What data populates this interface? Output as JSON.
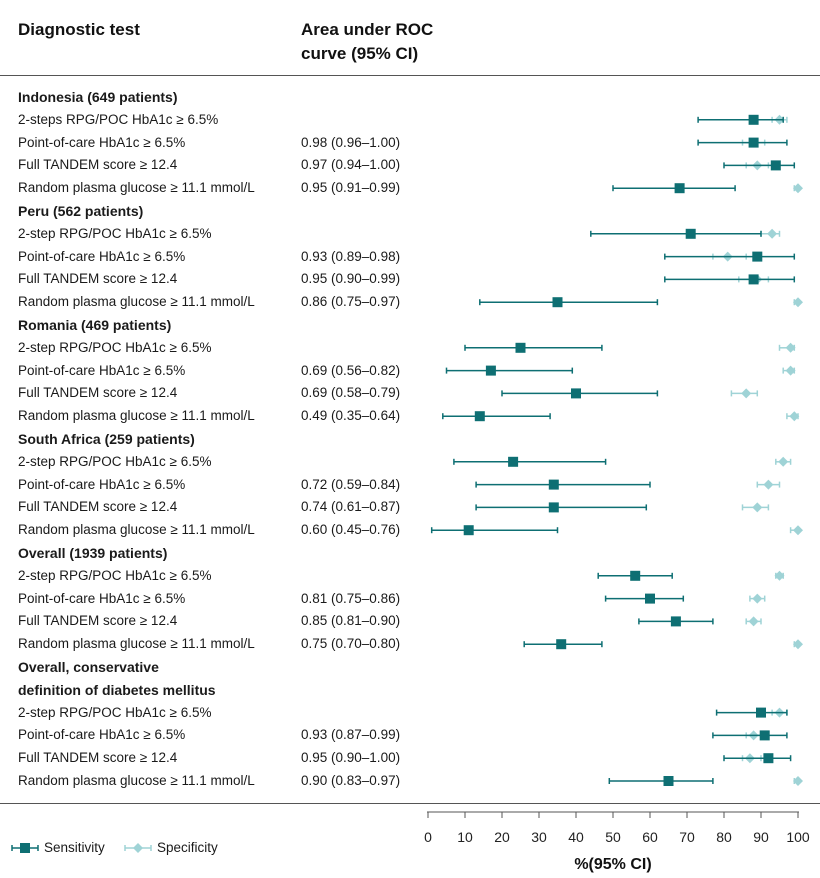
{
  "header": {
    "col1": "Diagnostic test",
    "col2_line1": "Area under ROC",
    "col2_line2": "curve (95% CI)"
  },
  "legend": {
    "sensitivity": "Sensitivity",
    "specificity": "Specificity"
  },
  "colors": {
    "sensitivity": "#0e6f73",
    "specificity": "#9fd3d6"
  },
  "chart_data": {
    "type": "forest",
    "xlabel": "%(95% CI)",
    "xlim": [
      0,
      100
    ],
    "xticks": [
      0,
      10,
      20,
      30,
      40,
      50,
      60,
      70,
      80,
      90,
      100
    ],
    "series": [
      {
        "name": "Sensitivity"
      },
      {
        "name": "Specificity"
      }
    ],
    "rows": [
      {
        "label": "Indonesia (649 patients)",
        "group": true
      },
      {
        "label": "2-steps RPG/POC HbA1c ≥ 6.5%",
        "auc": "",
        "sens": [
          88,
          73,
          96
        ],
        "spec": [
          95,
          93,
          97
        ]
      },
      {
        "label": "Point-of-care HbA1c ≥ 6.5%",
        "auc": "0.98 (0.96–1.00)",
        "sens": [
          88,
          73,
          97
        ],
        "spec": [
          88,
          85,
          91
        ]
      },
      {
        "label": "Full TANDEM score ≥ 12.4",
        "auc": "0.97 (0.94–1.00)",
        "sens": [
          94,
          80,
          99
        ],
        "spec": [
          89,
          86,
          92
        ]
      },
      {
        "label": "Random plasma glucose ≥ 11.1 mmol/L",
        "auc": "0.95 (0.91–0.99)",
        "sens": [
          68,
          50,
          83
        ],
        "spec": [
          100,
          99,
          100
        ]
      },
      {
        "label": "Peru (562 patients)",
        "group": true
      },
      {
        "label": "2-step RPG/POC HbA1c ≥  6.5%",
        "auc": "",
        "sens": [
          71,
          44,
          90
        ],
        "spec": [
          93,
          90,
          95
        ]
      },
      {
        "label": "Point-of-care HbA1c ≥  6.5%",
        "auc": "0.93 (0.89–0.98)",
        "sens": [
          89,
          64,
          99
        ],
        "spec": [
          81,
          77,
          86
        ]
      },
      {
        "label": "Full TANDEM score ≥ 12.4",
        "auc": "0.95 (0.90–0.99)",
        "sens": [
          88,
          64,
          99
        ],
        "spec": [
          89,
          84,
          92
        ]
      },
      {
        "label": "Random plasma glucose  ≥ 11.1  mmol/L",
        "auc": "0.86 (0.75–0.97)",
        "sens": [
          35,
          14,
          62
        ],
        "spec": [
          100,
          99,
          100
        ]
      },
      {
        "label": "Romania (469 patients)",
        "group": true
      },
      {
        "label": "2-step RPG/POC HbA1c ≥ 6.5%",
        "auc": "",
        "sens": [
          25,
          10,
          47
        ],
        "spec": [
          98,
          95,
          99
        ]
      },
      {
        "label": "Point-of-care HbA1c  ≥ 6.5%",
        "auc": "0.69 (0.56–0.82)",
        "sens": [
          17,
          5,
          39
        ],
        "spec": [
          98,
          96,
          99
        ]
      },
      {
        "label": "Full TANDEM score ≥ 12.4",
        "auc": "0.69 (0.58–0.79)",
        "sens": [
          40,
          20,
          62
        ],
        "spec": [
          86,
          82,
          89
        ]
      },
      {
        "label": "Random plasma glucose ≥ 11.1 mmol/L",
        "auc": "0.49 (0.35–0.64)",
        "sens": [
          14,
          4,
          33
        ],
        "spec": [
          99,
          97,
          100
        ]
      },
      {
        "label": "South Africa (259 patients)",
        "group": true
      },
      {
        "label": "2-step RPG/POC HbA1c ≥ 6.5%",
        "auc": "",
        "sens": [
          23,
          7,
          48
        ],
        "spec": [
          96,
          94,
          98
        ]
      },
      {
        "label": "Point-of-care HbA1c ≥ 6.5%",
        "auc": "0.72 (0.59–0.84)",
        "sens": [
          34,
          13,
          60
        ],
        "spec": [
          92,
          89,
          95
        ]
      },
      {
        "label": "Full TANDEM score ≥ 12.4",
        "auc": "0.74 (0.61–0.87)",
        "sens": [
          34,
          13,
          59
        ],
        "spec": [
          89,
          85,
          92
        ]
      },
      {
        "label": "Random plasma glucose ≥ 11.1 mmol/L",
        "auc": "0.60 (0.45–0.76)",
        "sens": [
          11,
          1,
          35
        ],
        "spec": [
          100,
          98,
          100
        ]
      },
      {
        "label": "Overall (1939 patients)",
        "group": true
      },
      {
        "label": "2-step RPG/POC HbA1c ≥ 6.5%",
        "auc": "",
        "sens": [
          56,
          46,
          66
        ],
        "spec": [
          95,
          94,
          96
        ]
      },
      {
        "label": "Point-of-care HbA1c ≥ 6.5%",
        "auc": "0.81 (0.75–0.86)",
        "sens": [
          60,
          48,
          69
        ],
        "spec": [
          89,
          87,
          91
        ]
      },
      {
        "label": "Full TANDEM score ≥ 12.4",
        "auc": "0.85 (0.81–0.90)",
        "sens": [
          67,
          57,
          77
        ],
        "spec": [
          88,
          86,
          90
        ]
      },
      {
        "label": "Random plasma glucose ≥ 11.1 mmol/L",
        "auc": "0.75 (0.70–0.80)",
        "sens": [
          36,
          26,
          47
        ],
        "spec": [
          100,
          99,
          100
        ]
      },
      {
        "label": "Overall, conservative",
        "group": true
      },
      {
        "label": "definition of diabetes mellitus",
        "group": true
      },
      {
        "label": "2-step RPG/POC HbA1c ≥ 6.5%",
        "auc": "",
        "sens": [
          90,
          78,
          97
        ],
        "spec": [
          95,
          93,
          97
        ]
      },
      {
        "label": "Point-of-care HbA1c ≥ 6.5%",
        "auc": "0.93 (0.87–0.99)",
        "sens": [
          91,
          77,
          97
        ],
        "spec": [
          88,
          86,
          90
        ]
      },
      {
        "label": "Full TANDEM score  ≥ 12.4",
        "auc": "0.95 (0.90–1.00)",
        "sens": [
          92,
          80,
          98
        ],
        "spec": [
          87,
          85,
          90
        ]
      },
      {
        "label": "Random plasma glucose ≥ 11.1 mmol/L",
        "auc": "0.90 (0.83–0.97)",
        "sens": [
          65,
          49,
          77
        ],
        "spec": [
          100,
          99,
          100
        ]
      }
    ]
  }
}
